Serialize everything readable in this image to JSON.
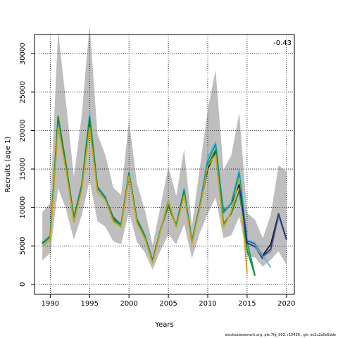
{
  "chart_data": {
    "type": "line",
    "title": "",
    "xlabel": "Years",
    "ylabel": "Recruits (age 1)",
    "xlim": [
      1988,
      2021
    ],
    "ylim": [
      -1300,
      32500
    ],
    "x_ticks": [
      1990,
      1995,
      2000,
      2005,
      2010,
      2015,
      2020
    ],
    "y_ticks": [
      0,
      5000,
      10000,
      15000,
      20000,
      25000,
      30000
    ],
    "grid": true,
    "grid_style": "dotted",
    "annotation": "-0.43",
    "footer": "stockassessment.org, ple.7fg_003, r15436 , git: ec2c2a0c6dde",
    "band": {
      "color": "#bebebe",
      "years": [
        1989,
        1990,
        1991,
        1992,
        1993,
        1994,
        1995,
        1996,
        1997,
        1998,
        1999,
        2000,
        2001,
        2002,
        2003,
        2004,
        2005,
        2006,
        2007,
        2008,
        2009,
        2010,
        2011,
        2012,
        2013,
        2014,
        2015,
        2016,
        2017,
        2018,
        2019,
        2020
      ],
      "lower": [
        3100,
        4100,
        12500,
        9800,
        5800,
        9000,
        13500,
        8200,
        7500,
        5600,
        5200,
        9400,
        5500,
        4200,
        1900,
        4400,
        6500,
        5200,
        7800,
        3400,
        6700,
        9200,
        11300,
        6000,
        6400,
        8800,
        3700,
        3500,
        2300,
        3200,
        4300,
        2500
      ],
      "upper": [
        9400,
        10600,
        33000,
        23700,
        14000,
        22000,
        33800,
        19500,
        16800,
        12600,
        11600,
        21300,
        13200,
        9700,
        5100,
        10100,
        15300,
        11500,
        17600,
        7600,
        15200,
        22700,
        27900,
        14900,
        16800,
        22300,
        9300,
        8400,
        6000,
        9000,
        15500,
        14700
      ]
    },
    "series": [
      {
        "color": "#1a1a1a",
        "x": [
          1989,
          1990,
          1991,
          1992,
          1993,
          1994,
          1995,
          1996,
          1997,
          1998,
          1999,
          2000,
          2001,
          2002,
          2003,
          2004,
          2005,
          2006,
          2007,
          2008,
          2009,
          2010,
          2011,
          2012,
          2013,
          2014,
          2015,
          2016,
          2017,
          2018,
          2019,
          2020
        ],
        "y": [
          5300,
          6200,
          21500,
          15500,
          8700,
          13000,
          21000,
          12500,
          11300,
          8700,
          7800,
          14000,
          8500,
          6400,
          3100,
          7100,
          10400,
          7700,
          12000,
          5600,
          10100,
          15000,
          17200,
          9600,
          10500,
          13000,
          5700,
          5300,
          3800,
          5200,
          9200,
          5900
        ]
      },
      {
        "color": "#56b4e9",
        "x": [
          1989,
          1990,
          1991,
          1992,
          1993,
          1994,
          1995,
          1996,
          1997,
          1998,
          1999,
          2000,
          2001,
          2002,
          2003,
          2004,
          2005,
          2006,
          2007,
          2008,
          2009,
          2010,
          2011,
          2012,
          2013,
          2014,
          2015,
          2016,
          2017,
          2018
        ],
        "y": [
          5200,
          6100,
          21300,
          15500,
          8800,
          13000,
          22400,
          12800,
          11400,
          8500,
          7900,
          14500,
          8400,
          6400,
          3000,
          7200,
          10500,
          7800,
          12500,
          5700,
          10400,
          16500,
          18500,
          9400,
          10700,
          15000,
          5800,
          5400,
          3800,
          2200
        ]
      },
      {
        "color": "#00a08a",
        "x": [
          1989,
          1990,
          1991,
          1992,
          1993,
          1994,
          1995,
          1996,
          1997,
          1998,
          1999,
          2000,
          2001,
          2002,
          2003,
          2004,
          2005,
          2006,
          2007,
          2008,
          2009,
          2010,
          2011,
          2012,
          2013,
          2014,
          2015,
          2016
        ],
        "y": [
          5400,
          6300,
          21900,
          15700,
          8700,
          12900,
          21800,
          12600,
          11200,
          8600,
          7800,
          14600,
          8500,
          6300,
          3000,
          7100,
          10400,
          7700,
          12300,
          5600,
          10300,
          16000,
          18200,
          9300,
          10500,
          14500,
          5600,
          1200
        ]
      },
      {
        "color": "#228b22",
        "x": [
          1989,
          1990,
          1991,
          1992,
          1993,
          1994,
          1995,
          1996,
          1997,
          1998,
          1999,
          2000,
          2001,
          2002,
          2003,
          2004,
          2005,
          2006,
          2007,
          2008,
          2009,
          2010,
          2011,
          2012,
          2013,
          2014,
          2015,
          2016
        ],
        "y": [
          5300,
          6200,
          21800,
          15600,
          8600,
          12700,
          21700,
          12600,
          11300,
          8400,
          7700,
          14400,
          8200,
          6200,
          2900,
          7000,
          10200,
          7600,
          12000,
          5400,
          10100,
          15500,
          17500,
          7900,
          9200,
          12200,
          4500,
          1100
        ]
      },
      {
        "color": "#c8a21a",
        "x": [
          1989,
          1990,
          1991,
          1992,
          1993,
          1994,
          1995,
          1996,
          1997,
          1998,
          1999,
          2000,
          2001,
          2002,
          2003,
          2004,
          2005,
          2006,
          2007,
          2008,
          2009,
          2010,
          2011,
          2012,
          2013,
          2014,
          2015
        ],
        "y": [
          4900,
          5800,
          20400,
          14900,
          8100,
          12300,
          20400,
          12000,
          11000,
          8200,
          7400,
          14100,
          8000,
          6000,
          2800,
          6900,
          11000,
          7400,
          11600,
          5300,
          9900,
          15400,
          16900,
          7400,
          9500,
          13800,
          1500
        ]
      },
      {
        "color": "#1d2e8c",
        "x": [
          2014,
          2015,
          2016,
          2017
        ],
        "y": [
          13000,
          5400,
          4900,
          3300
        ]
      },
      {
        "color": "#8a8a8a",
        "x": [
          2016,
          2017,
          2018,
          2019,
          2020
        ],
        "y": [
          4800,
          3600,
          4300,
          8800,
          5800
        ]
      },
      {
        "color": "#2a3a8c",
        "x": [
          2017,
          2018,
          2019,
          2020
        ],
        "y": [
          3700,
          4600,
          9200,
          5800
        ]
      }
    ]
  }
}
